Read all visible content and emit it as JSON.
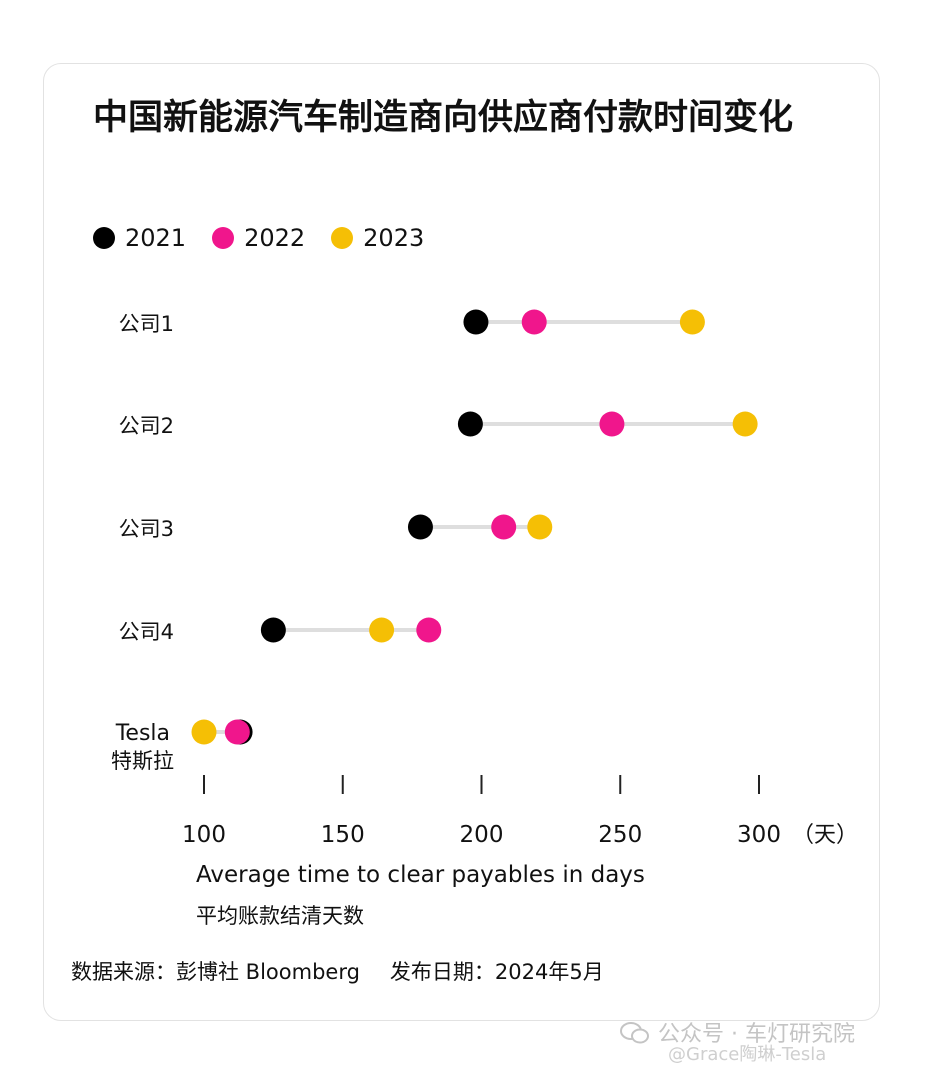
{
  "title": "中国新能源汽车制造商向供应商付款时间变化",
  "source": {
    "label": "数据来源：彭博社 Bloomberg",
    "date": "发布日期：2024年5月"
  },
  "watermark": {
    "line1": "公众号 · 车灯研究院",
    "line2": "@Grace陶琳-Tesla"
  },
  "chart_data": {
    "type": "dot-plot",
    "title": "中国新能源汽车制造商向供应商付款时间变化",
    "xlabel": "Average time to clear payables in days",
    "xlabel_cn": "平均账款结清天数",
    "x_unit": "（天）",
    "xlim": [
      100,
      300
    ],
    "x_ticks": [
      100,
      150,
      200,
      250,
      300
    ],
    "grid": false,
    "legend_position": "top-left",
    "series": [
      {
        "name": "2021",
        "color": "#000000"
      },
      {
        "name": "2022",
        "color": "#f0168c"
      },
      {
        "name": "2023",
        "color": "#f5bf05"
      }
    ],
    "categories": [
      {
        "label": "公司1",
        "values": {
          "2021": 198,
          "2022": 219,
          "2023": 276
        }
      },
      {
        "label": "公司2",
        "values": {
          "2021": 196,
          "2022": 247,
          "2023": 295
        }
      },
      {
        "label": "公司3",
        "values": {
          "2021": 178,
          "2022": 208,
          "2023": 221
        }
      },
      {
        "label": "公司4",
        "values": {
          "2021": 125,
          "2022": 181,
          "2023": 164
        }
      },
      {
        "label": "Tesla",
        "label2": "特斯拉",
        "values": {
          "2021": 113,
          "2022": 112,
          "2023": 100
        }
      }
    ],
    "draw_order": [
      "2023",
      "2021",
      "2022"
    ]
  }
}
